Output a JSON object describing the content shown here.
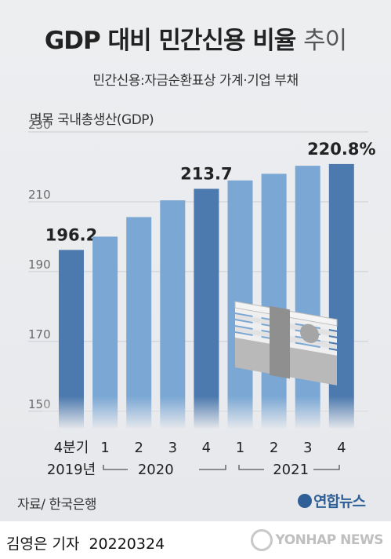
{
  "title": {
    "main": "GDP 대비 민간신용 비율",
    "tail": "추이"
  },
  "subtitle": "민간신용:자금순환표상 가계·기업 부채",
  "y_axis_label": "명목 국내총생산(GDP)",
  "source": "자료/ 한국은행",
  "logo": "연합뉴스",
  "byline": {
    "author": "김영은 기자",
    "date": "20220324"
  },
  "watermark": "YONHAP NEWS",
  "colors": {
    "bar_light": "#7ba7d4",
    "bar_dark": "#4d7aae",
    "text": "#222222",
    "grid": "#c9ccd1"
  },
  "chart_data": {
    "type": "bar",
    "categories": [
      "4분기",
      "1",
      "2",
      "3",
      "4",
      "1",
      "2",
      "3",
      "4"
    ],
    "year_labels": [
      "2019년",
      "2020",
      "2021"
    ],
    "values": [
      196.2,
      200.0,
      205.6,
      210.4,
      213.7,
      216.1,
      218.0,
      220.3,
      220.8
    ],
    "highlighted": [
      true,
      false,
      false,
      false,
      true,
      false,
      false,
      false,
      true
    ],
    "data_labels": [
      "196.2",
      "",
      "",
      "",
      "213.7",
      "",
      "",
      "",
      "220.8%"
    ],
    "yticks": [
      150,
      170,
      190,
      210,
      230
    ],
    "ylim": [
      145,
      230
    ],
    "ylabel": "명목 국내총생산(GDP)",
    "grid": true,
    "legend": "none"
  }
}
